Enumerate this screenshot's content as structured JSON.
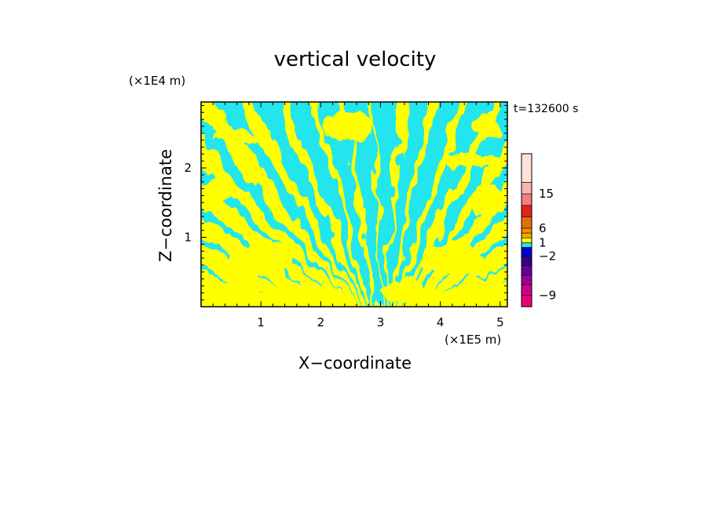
{
  "chart_data": {
    "type": "heatmap",
    "title": "vertical velocity",
    "xlabel": "X−coordinate",
    "ylabel": "Z−coordinate",
    "x_unit": "(×1E5 m)",
    "y_unit": "(×1E4 m)",
    "time_label": "t=132600 s",
    "xlim": [
      0,
      5.12
    ],
    "ylim": [
      0,
      2.95
    ],
    "xticks": [
      "1",
      "2",
      "3",
      "4",
      "5"
    ],
    "yticks": [
      "1",
      "2"
    ],
    "field_colors": {
      "negative": "#22e5ee",
      "positive": "#ffff00",
      "strong_positive": "#e07000",
      "strong_negative": "#9900cc"
    },
    "colorbar": {
      "labels": [
        "15",
        "6",
        "1",
        "−2",
        "−9"
      ],
      "label_values": [
        15,
        6,
        1,
        -2,
        -9
      ],
      "colors": [
        "#ffe2da",
        "#f7b6b0",
        "#f47c82",
        "#e6201a",
        "#e07000",
        "#ff8c00",
        "#ffa500",
        "#ffff00",
        "#22e5ee",
        "#0000cc",
        "#330088",
        "#660099",
        "#990099",
        "#cc0088",
        "#ee0077"
      ],
      "level_values": [
        20,
        15,
        10,
        8,
        6,
        4,
        2,
        1,
        -1,
        -2,
        -4,
        -6,
        -8,
        -9,
        -12
      ]
    }
  }
}
